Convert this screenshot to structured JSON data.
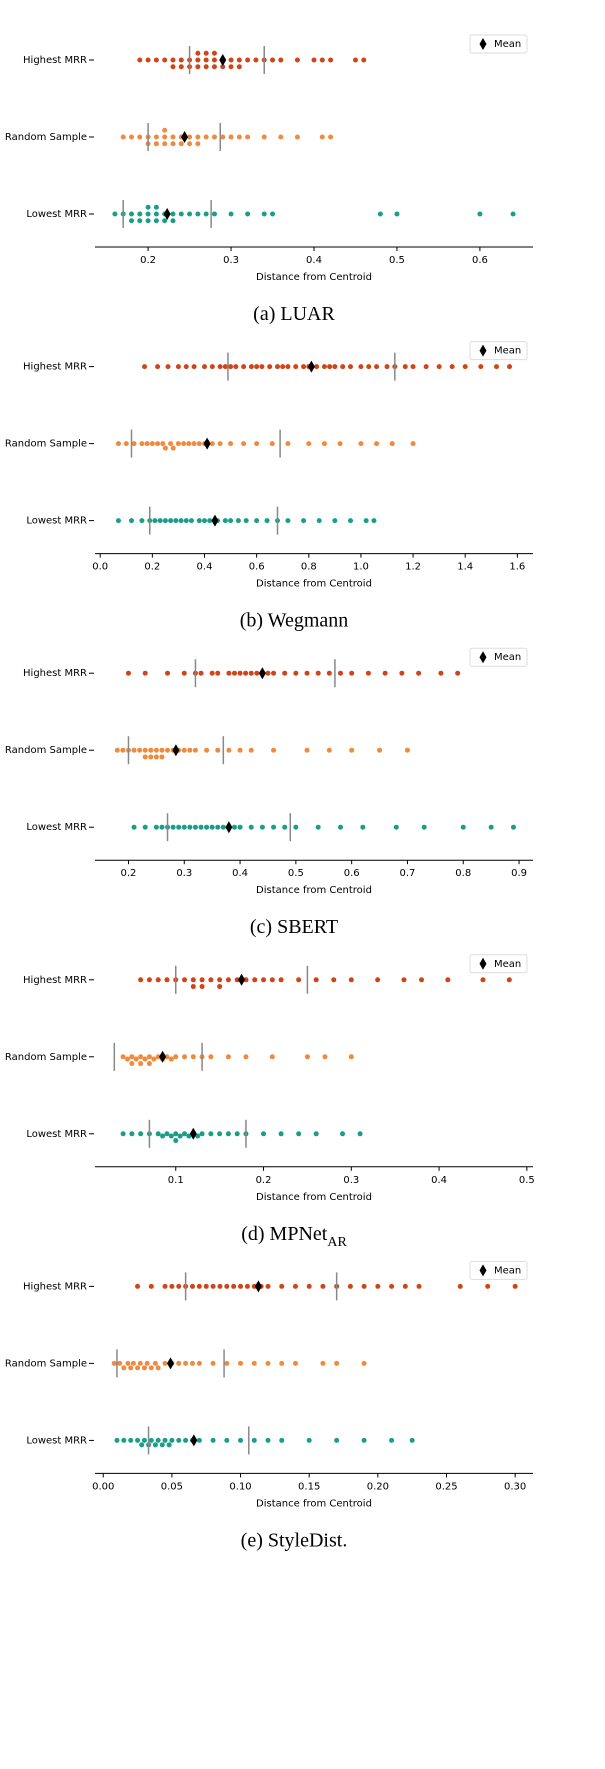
{
  "chart_data": [
    {
      "type": "swarm",
      "caption": "(a) LUAR",
      "xlabel": "Distance from Centroid",
      "legend": "Mean",
      "legend_loc": "upper right",
      "xlim": [
        0.136,
        0.664
      ],
      "xticks": [
        0.2,
        0.3,
        0.4,
        0.5,
        0.6
      ],
      "series": [
        {
          "name": "Highest MRR",
          "color": "#cf4519",
          "mean": 0.29,
          "quartiles": [
            0.25,
            0.34
          ],
          "values": [
            0.19,
            0.2,
            0.21,
            0.22,
            0.23,
            0.23,
            0.24,
            0.24,
            0.25,
            0.25,
            0.26,
            0.26,
            0.26,
            0.27,
            0.27,
            0.27,
            0.28,
            0.28,
            0.28,
            0.29,
            0.29,
            0.3,
            0.3,
            0.31,
            0.31,
            0.32,
            0.33,
            0.34,
            0.35,
            0.36,
            0.38,
            0.4,
            0.41,
            0.42,
            0.45,
            0.46
          ]
        },
        {
          "name": "Random Sample",
          "color": "#ef8a3e",
          "mean": 0.244,
          "quartiles": [
            0.2,
            0.287
          ],
          "values": [
            0.17,
            0.18,
            0.19,
            0.2,
            0.2,
            0.21,
            0.21,
            0.22,
            0.22,
            0.22,
            0.23,
            0.23,
            0.24,
            0.24,
            0.25,
            0.25,
            0.26,
            0.26,
            0.27,
            0.28,
            0.29,
            0.3,
            0.31,
            0.32,
            0.34,
            0.36,
            0.38,
            0.41,
            0.42
          ]
        },
        {
          "name": "Lowest MRR",
          "color": "#1b9e88",
          "mean": 0.223,
          "quartiles": [
            0.17,
            0.276
          ],
          "values": [
            0.16,
            0.17,
            0.18,
            0.18,
            0.19,
            0.19,
            0.2,
            0.2,
            0.2,
            0.21,
            0.21,
            0.21,
            0.22,
            0.22,
            0.23,
            0.23,
            0.24,
            0.25,
            0.26,
            0.27,
            0.28,
            0.3,
            0.32,
            0.34,
            0.35,
            0.48,
            0.5,
            0.6,
            0.64
          ]
        }
      ]
    },
    {
      "type": "swarm",
      "caption": "(b) Wegmann",
      "xlabel": "Distance from Centroid",
      "legend": "Mean",
      "legend_loc": "upper right",
      "xlim": [
        -0.02,
        1.66
      ],
      "xticks": [
        {
          "value": 0,
          "label": "0.0"
        },
        0.2,
        0.4,
        0.6,
        0.8,
        {
          "value": 1,
          "label": "1.0"
        },
        1.2,
        1.4,
        1.6
      ],
      "series": [
        {
          "name": "Highest MRR",
          "color": "#cf4519",
          "mean": 0.81,
          "quartiles": [
            0.49,
            1.13
          ],
          "values": [
            0.17,
            0.22,
            0.26,
            0.3,
            0.33,
            0.36,
            0.4,
            0.43,
            0.46,
            0.48,
            0.5,
            0.52,
            0.55,
            0.58,
            0.6,
            0.62,
            0.65,
            0.68,
            0.7,
            0.72,
            0.75,
            0.78,
            0.8,
            0.83,
            0.86,
            0.88,
            0.9,
            0.93,
            0.96,
            1.0,
            1.03,
            1.06,
            1.1,
            1.13,
            1.17,
            1.2,
            1.25,
            1.3,
            1.35,
            1.4,
            1.46,
            1.52,
            1.57
          ]
        },
        {
          "name": "Random Sample",
          "color": "#ef8a3e",
          "mean": 0.41,
          "quartiles": [
            0.12,
            0.69
          ],
          "values": [
            0.07,
            0.1,
            0.13,
            0.16,
            0.18,
            0.2,
            0.22,
            0.24,
            0.25,
            0.27,
            0.28,
            0.3,
            0.32,
            0.34,
            0.36,
            0.38,
            0.4,
            0.43,
            0.46,
            0.5,
            0.55,
            0.6,
            0.66,
            0.72,
            0.8,
            0.86,
            0.92,
            1.0,
            1.06,
            1.12,
            1.2
          ]
        },
        {
          "name": "Lowest MRR",
          "color": "#1b9e88",
          "mean": 0.44,
          "quartiles": [
            0.19,
            0.68
          ],
          "values": [
            0.07,
            0.12,
            0.16,
            0.19,
            0.21,
            0.23,
            0.25,
            0.27,
            0.29,
            0.31,
            0.33,
            0.35,
            0.38,
            0.4,
            0.42,
            0.45,
            0.48,
            0.5,
            0.53,
            0.56,
            0.6,
            0.64,
            0.68,
            0.72,
            0.78,
            0.84,
            0.9,
            0.96,
            1.02,
            1.05
          ]
        }
      ]
    },
    {
      "type": "swarm",
      "caption": "(c) SBERT",
      "xlabel": "Distance from Centroid",
      "legend": "Mean",
      "legend_loc": "upper right",
      "xlim": [
        0.14,
        0.925
      ],
      "xticks": [
        0.2,
        0.3,
        0.4,
        0.5,
        0.6,
        0.7,
        0.8,
        0.9
      ],
      "series": [
        {
          "name": "Highest MRR",
          "color": "#cf4519",
          "mean": 0.44,
          "quartiles": [
            0.32,
            0.57
          ],
          "values": [
            0.2,
            0.23,
            0.27,
            0.3,
            0.32,
            0.33,
            0.35,
            0.36,
            0.38,
            0.39,
            0.4,
            0.41,
            0.42,
            0.43,
            0.44,
            0.45,
            0.46,
            0.48,
            0.5,
            0.52,
            0.54,
            0.56,
            0.58,
            0.6,
            0.63,
            0.66,
            0.69,
            0.72,
            0.76,
            0.79
          ]
        },
        {
          "name": "Random Sample",
          "color": "#ef8a3e",
          "mean": 0.285,
          "quartiles": [
            0.2,
            0.37
          ],
          "values": [
            0.18,
            0.19,
            0.2,
            0.21,
            0.22,
            0.23,
            0.23,
            0.24,
            0.24,
            0.25,
            0.25,
            0.26,
            0.26,
            0.27,
            0.28,
            0.29,
            0.3,
            0.31,
            0.32,
            0.34,
            0.36,
            0.38,
            0.4,
            0.42,
            0.46,
            0.52,
            0.56,
            0.6,
            0.65,
            0.7
          ]
        },
        {
          "name": "Lowest MRR",
          "color": "#1b9e88",
          "mean": 0.38,
          "quartiles": [
            0.27,
            0.49
          ],
          "values": [
            0.21,
            0.23,
            0.25,
            0.26,
            0.27,
            0.28,
            0.29,
            0.3,
            0.31,
            0.32,
            0.33,
            0.34,
            0.35,
            0.36,
            0.37,
            0.38,
            0.39,
            0.4,
            0.42,
            0.44,
            0.46,
            0.48,
            0.5,
            0.54,
            0.58,
            0.62,
            0.68,
            0.73,
            0.8,
            0.85,
            0.89
          ]
        }
      ]
    },
    {
      "type": "swarm",
      "caption": "(d) MPNet",
      "caption_sub": "AR",
      "xlabel": "Distance from Centroid",
      "legend": "Mean",
      "legend_loc": "upper right",
      "xlim": [
        0.008,
        0.507
      ],
      "xticks": [
        0.1,
        0.2,
        0.3,
        0.4,
        0.5
      ],
      "series": [
        {
          "name": "Highest MRR",
          "color": "#cf4519",
          "mean": 0.175,
          "quartiles": [
            0.1,
            0.25
          ],
          "values": [
            0.06,
            0.07,
            0.08,
            0.09,
            0.1,
            0.11,
            0.12,
            0.12,
            0.13,
            0.13,
            0.14,
            0.15,
            0.15,
            0.16,
            0.17,
            0.18,
            0.19,
            0.2,
            0.21,
            0.22,
            0.24,
            0.26,
            0.28,
            0.3,
            0.33,
            0.36,
            0.38,
            0.41,
            0.45,
            0.48
          ]
        },
        {
          "name": "Random Sample",
          "color": "#ef8a3e",
          "mean": 0.085,
          "quartiles": [
            0.03,
            0.13
          ],
          "values": [
            0.04,
            0.045,
            0.05,
            0.05,
            0.055,
            0.06,
            0.06,
            0.065,
            0.07,
            0.07,
            0.075,
            0.08,
            0.085,
            0.09,
            0.095,
            0.1,
            0.11,
            0.12,
            0.13,
            0.14,
            0.16,
            0.18,
            0.21,
            0.25,
            0.27,
            0.3
          ]
        },
        {
          "name": "Lowest MRR",
          "color": "#1b9e88",
          "mean": 0.12,
          "quartiles": [
            0.07,
            0.18
          ],
          "values": [
            0.04,
            0.05,
            0.06,
            0.07,
            0.08,
            0.085,
            0.09,
            0.095,
            0.1,
            0.1,
            0.105,
            0.11,
            0.115,
            0.12,
            0.125,
            0.13,
            0.14,
            0.15,
            0.16,
            0.17,
            0.18,
            0.2,
            0.22,
            0.24,
            0.26,
            0.29,
            0.31
          ]
        }
      ]
    },
    {
      "type": "swarm",
      "caption": "(e) StyleDist.",
      "xlabel": "Distance from Centroid",
      "legend": "Mean",
      "legend_loc": "upper right",
      "xlim": [
        -0.006,
        0.313
      ],
      "xticks": [
        {
          "value": 0,
          "label": "0.00"
        },
        0.05,
        {
          "value": 0.1,
          "label": "0.10"
        },
        0.15,
        {
          "value": 0.2,
          "label": "0.20"
        },
        0.25,
        {
          "value": 0.3,
          "label": "0.30"
        }
      ],
      "series": [
        {
          "name": "Highest MRR",
          "color": "#cf4519",
          "mean": 0.113,
          "quartiles": [
            0.06,
            0.17
          ],
          "values": [
            0.025,
            0.035,
            0.045,
            0.05,
            0.055,
            0.06,
            0.065,
            0.07,
            0.075,
            0.08,
            0.085,
            0.09,
            0.095,
            0.1,
            0.105,
            0.11,
            0.115,
            0.12,
            0.13,
            0.14,
            0.15,
            0.16,
            0.17,
            0.18,
            0.19,
            0.2,
            0.21,
            0.22,
            0.23,
            0.26,
            0.28,
            0.3
          ]
        },
        {
          "name": "Random Sample",
          "color": "#ef8a3e",
          "mean": 0.049,
          "quartiles": [
            0.01,
            0.088
          ],
          "values": [
            0.008,
            0.012,
            0.015,
            0.018,
            0.02,
            0.022,
            0.025,
            0.027,
            0.03,
            0.032,
            0.035,
            0.038,
            0.04,
            0.045,
            0.05,
            0.055,
            0.06,
            0.065,
            0.07,
            0.08,
            0.09,
            0.1,
            0.11,
            0.12,
            0.13,
            0.14,
            0.16,
            0.17,
            0.19
          ]
        },
        {
          "name": "Lowest MRR",
          "color": "#1b9e88",
          "mean": 0.066,
          "quartiles": [
            0.033,
            0.106
          ],
          "values": [
            0.01,
            0.015,
            0.02,
            0.025,
            0.028,
            0.03,
            0.033,
            0.035,
            0.038,
            0.04,
            0.043,
            0.045,
            0.048,
            0.05,
            0.055,
            0.06,
            0.065,
            0.07,
            0.08,
            0.09,
            0.1,
            0.11,
            0.12,
            0.13,
            0.15,
            0.17,
            0.19,
            0.21,
            0.225
          ]
        }
      ]
    }
  ]
}
